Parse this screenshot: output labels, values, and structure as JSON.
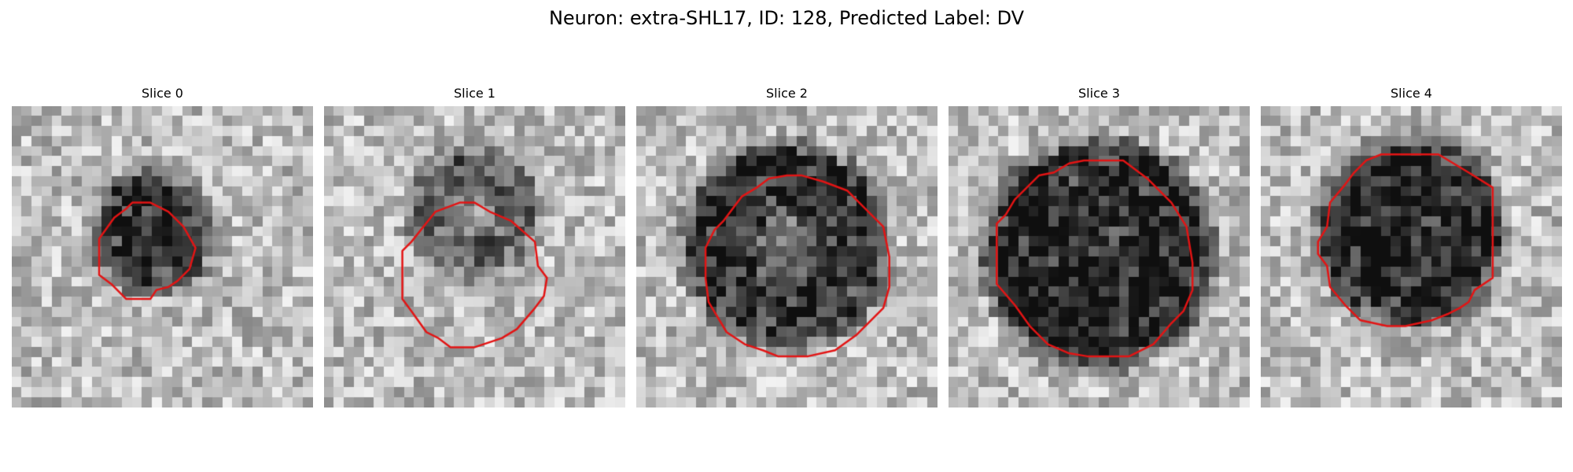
{
  "figure": {
    "title": "Neuron: extra-SHL17, ID: 128, Predicted Label: DV",
    "contour_color": "#e31414",
    "colormap": "grayscale",
    "panels": [
      {
        "title": "Slice 0",
        "seed": 11,
        "dark_center": [
          0.47,
          0.42
        ],
        "dark_radius": 0.16,
        "dark_strength": 0.55,
        "ring": false,
        "contour": [
          [
            0.4,
            0.32
          ],
          [
            0.46,
            0.32
          ],
          [
            0.52,
            0.35
          ],
          [
            0.57,
            0.4
          ],
          [
            0.61,
            0.47
          ],
          [
            0.59,
            0.54
          ],
          [
            0.55,
            0.58
          ],
          [
            0.52,
            0.6
          ],
          [
            0.48,
            0.61
          ],
          [
            0.46,
            0.64
          ],
          [
            0.38,
            0.64
          ],
          [
            0.33,
            0.59
          ],
          [
            0.29,
            0.56
          ],
          [
            0.29,
            0.44
          ],
          [
            0.34,
            0.37
          ],
          [
            0.38,
            0.34
          ]
        ]
      },
      {
        "title": "Slice 1",
        "seed": 23,
        "dark_center": [
          0.5,
          0.36
        ],
        "dark_radius": 0.18,
        "dark_strength": 0.35,
        "ring": true,
        "contour": [
          [
            0.37,
            0.35
          ],
          [
            0.45,
            0.32
          ],
          [
            0.5,
            0.32
          ],
          [
            0.55,
            0.35
          ],
          [
            0.62,
            0.38
          ],
          [
            0.7,
            0.45
          ],
          [
            0.71,
            0.53
          ],
          [
            0.74,
            0.57
          ],
          [
            0.73,
            0.63
          ],
          [
            0.7,
            0.67
          ],
          [
            0.64,
            0.74
          ],
          [
            0.59,
            0.77
          ],
          [
            0.5,
            0.8
          ],
          [
            0.42,
            0.8
          ],
          [
            0.38,
            0.77
          ],
          [
            0.34,
            0.75
          ],
          [
            0.29,
            0.68
          ],
          [
            0.26,
            0.64
          ],
          [
            0.26,
            0.48
          ],
          [
            0.29,
            0.45
          ]
        ]
      },
      {
        "title": "Slice 2",
        "seed": 37,
        "dark_center": [
          0.5,
          0.46
        ],
        "dark_radius": 0.3,
        "dark_strength": 0.55,
        "ring": true,
        "contour": [
          [
            0.35,
            0.3
          ],
          [
            0.4,
            0.27
          ],
          [
            0.44,
            0.24
          ],
          [
            0.5,
            0.23
          ],
          [
            0.55,
            0.23
          ],
          [
            0.62,
            0.25
          ],
          [
            0.7,
            0.28
          ],
          [
            0.75,
            0.33
          ],
          [
            0.82,
            0.4
          ],
          [
            0.84,
            0.5
          ],
          [
            0.84,
            0.6
          ],
          [
            0.82,
            0.67
          ],
          [
            0.76,
            0.73
          ],
          [
            0.73,
            0.76
          ],
          [
            0.66,
            0.81
          ],
          [
            0.57,
            0.83
          ],
          [
            0.47,
            0.83
          ],
          [
            0.42,
            0.81
          ],
          [
            0.36,
            0.79
          ],
          [
            0.3,
            0.75
          ],
          [
            0.27,
            0.7
          ],
          [
            0.24,
            0.65
          ],
          [
            0.23,
            0.57
          ],
          [
            0.23,
            0.47
          ],
          [
            0.26,
            0.41
          ],
          [
            0.29,
            0.38
          ]
        ]
      },
      {
        "title": "Slice 3",
        "seed": 53,
        "dark_center": [
          0.5,
          0.49
        ],
        "dark_radius": 0.34,
        "dark_strength": 0.6,
        "ring": false,
        "contour": [
          [
            0.3,
            0.23
          ],
          [
            0.35,
            0.22
          ],
          [
            0.4,
            0.19
          ],
          [
            0.45,
            0.18
          ],
          [
            0.58,
            0.18
          ],
          [
            0.66,
            0.24
          ],
          [
            0.74,
            0.32
          ],
          [
            0.79,
            0.4
          ],
          [
            0.81,
            0.52
          ],
          [
            0.81,
            0.61
          ],
          [
            0.78,
            0.68
          ],
          [
            0.74,
            0.72
          ],
          [
            0.68,
            0.79
          ],
          [
            0.6,
            0.83
          ],
          [
            0.46,
            0.83
          ],
          [
            0.4,
            0.82
          ],
          [
            0.33,
            0.79
          ],
          [
            0.27,
            0.73
          ],
          [
            0.22,
            0.66
          ],
          [
            0.16,
            0.59
          ],
          [
            0.16,
            0.39
          ],
          [
            0.19,
            0.36
          ],
          [
            0.22,
            0.31
          ]
        ]
      },
      {
        "title": "Slice 4",
        "seed": 71,
        "dark_center": [
          0.5,
          0.42
        ],
        "dark_radius": 0.27,
        "dark_strength": 0.6,
        "ring": false,
        "contour": [
          [
            0.35,
            0.18
          ],
          [
            0.4,
            0.16
          ],
          [
            0.44,
            0.16
          ],
          [
            0.59,
            0.16
          ],
          [
            0.64,
            0.19
          ],
          [
            0.69,
            0.22
          ],
          [
            0.77,
            0.27
          ],
          [
            0.77,
            0.57
          ],
          [
            0.71,
            0.61
          ],
          [
            0.69,
            0.65
          ],
          [
            0.66,
            0.67
          ],
          [
            0.62,
            0.69
          ],
          [
            0.57,
            0.71
          ],
          [
            0.48,
            0.73
          ],
          [
            0.42,
            0.73
          ],
          [
            0.33,
            0.71
          ],
          [
            0.28,
            0.66
          ],
          [
            0.23,
            0.6
          ],
          [
            0.22,
            0.53
          ],
          [
            0.19,
            0.49
          ],
          [
            0.19,
            0.45
          ],
          [
            0.22,
            0.4
          ],
          [
            0.23,
            0.32
          ],
          [
            0.28,
            0.26
          ],
          [
            0.31,
            0.22
          ]
        ]
      }
    ]
  }
}
